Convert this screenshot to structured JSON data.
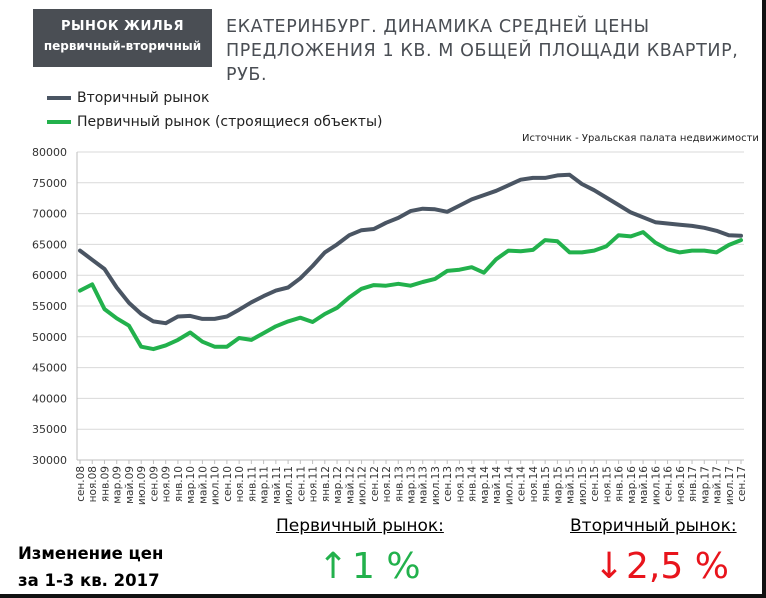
{
  "badge": {
    "line1": "РЫНОК ЖИЛЬЯ",
    "line2": "первичный-вторичный"
  },
  "title": {
    "line1": "ЕКАТЕРИНБУРГ. ДИНАМИКА СРЕДНЕЙ ЦЕНЫ",
    "line2": "ПРЕДЛОЖЕНИЯ 1 КВ. М ОБЩЕЙ ПЛОЩАДИ КВАРТИР,  РУБ."
  },
  "source": "Источник - Уральская палата недвижимости",
  "summary": {
    "heading_line1": "Изменение цен",
    "heading_line2": "за 1-3 кв. 2017",
    "primary_label": "Первичный рынок:",
    "primary_arrow": "↑",
    "primary_value": "1 %",
    "secondary_label": "Вторичный рынок:",
    "secondary_arrow": "↓",
    "secondary_value": "2,5 %"
  },
  "colors": {
    "secondary": "#4a5563",
    "primary": "#22b14c",
    "up": "#22b14c",
    "down": "#e8141c",
    "badge": "#4a4e54"
  },
  "chart_data": {
    "type": "line",
    "ylim": [
      30000,
      80000
    ],
    "yticks": [
      "30000",
      "35000",
      "40000",
      "45000",
      "50000",
      "55000",
      "60000",
      "65000",
      "70000",
      "75000",
      "80000"
    ],
    "grid": true,
    "legend_position": "top-left",
    "x": [
      "сен.08",
      "ноя.08",
      "янв.09",
      "мар.09",
      "май.09",
      "июл.09",
      "сен.09",
      "ноя.09",
      "янв.10",
      "мар.10",
      "май.10",
      "июл.10",
      "сен.10",
      "ноя.10",
      "янв.11",
      "мар.11",
      "май.11",
      "июл.11",
      "сен.11",
      "ноя.11",
      "янв.12",
      "мар.12",
      "май.12",
      "июл.12",
      "сен.12",
      "ноя.12",
      "янв.13",
      "мар.13",
      "май.13",
      "июл.13",
      "сен.13",
      "ноя.13",
      "янв.14",
      "мар.14",
      "май.14",
      "июл.14",
      "сен.14",
      "ноя.14",
      "янв.15",
      "мар.15",
      "май.15",
      "июл.15",
      "сен.15",
      "ноя.15",
      "янв.16",
      "мар.16",
      "май.16",
      "июл.16",
      "сен.16",
      "ноя.16",
      "янв.17",
      "мар.17",
      "май.17",
      "июл.17",
      "сен.17"
    ],
    "series": [
      {
        "name": "Вторичный рынок",
        "color": "#4a5563",
        "values": [
          64000,
          62500,
          61000,
          58000,
          55500,
          53700,
          52500,
          52200,
          53300,
          53400,
          52900,
          52900,
          53300,
          54400,
          55600,
          56600,
          57500,
          58000,
          59500,
          61500,
          63700,
          65000,
          66500,
          67300,
          67500,
          68500,
          69300,
          70400,
          70800,
          70700,
          70300,
          71300,
          72300,
          73000,
          73700,
          74600,
          75500,
          75800,
          75800,
          76200,
          76300,
          74800,
          73800,
          72600,
          71400,
          70200,
          69400,
          68600,
          68400,
          68200,
          68000,
          67700,
          67200,
          66500,
          66400
        ],
        "values_cont": []
      },
      {
        "name": "Первичный рынок (строящиеся объекты)",
        "color": "#22b14c",
        "values": [
          57500,
          58500,
          54500,
          53000,
          51800,
          48400,
          48000,
          48600,
          49500,
          50700,
          49200,
          48400,
          48400,
          49800,
          49500,
          50600,
          51700,
          52500,
          53100,
          52400,
          53700,
          54700,
          56400,
          57800,
          58400,
          58300,
          58600,
          58300,
          58900,
          59400,
          60700,
          60900,
          61300,
          60400,
          62600,
          64000,
          63900,
          64100,
          65700,
          65500,
          63700,
          63700,
          64000,
          64700,
          66500,
          66300,
          67000,
          65300,
          64200,
          63700,
          64000,
          64000,
          63700,
          64900,
          65700
        ]
      }
    ]
  }
}
